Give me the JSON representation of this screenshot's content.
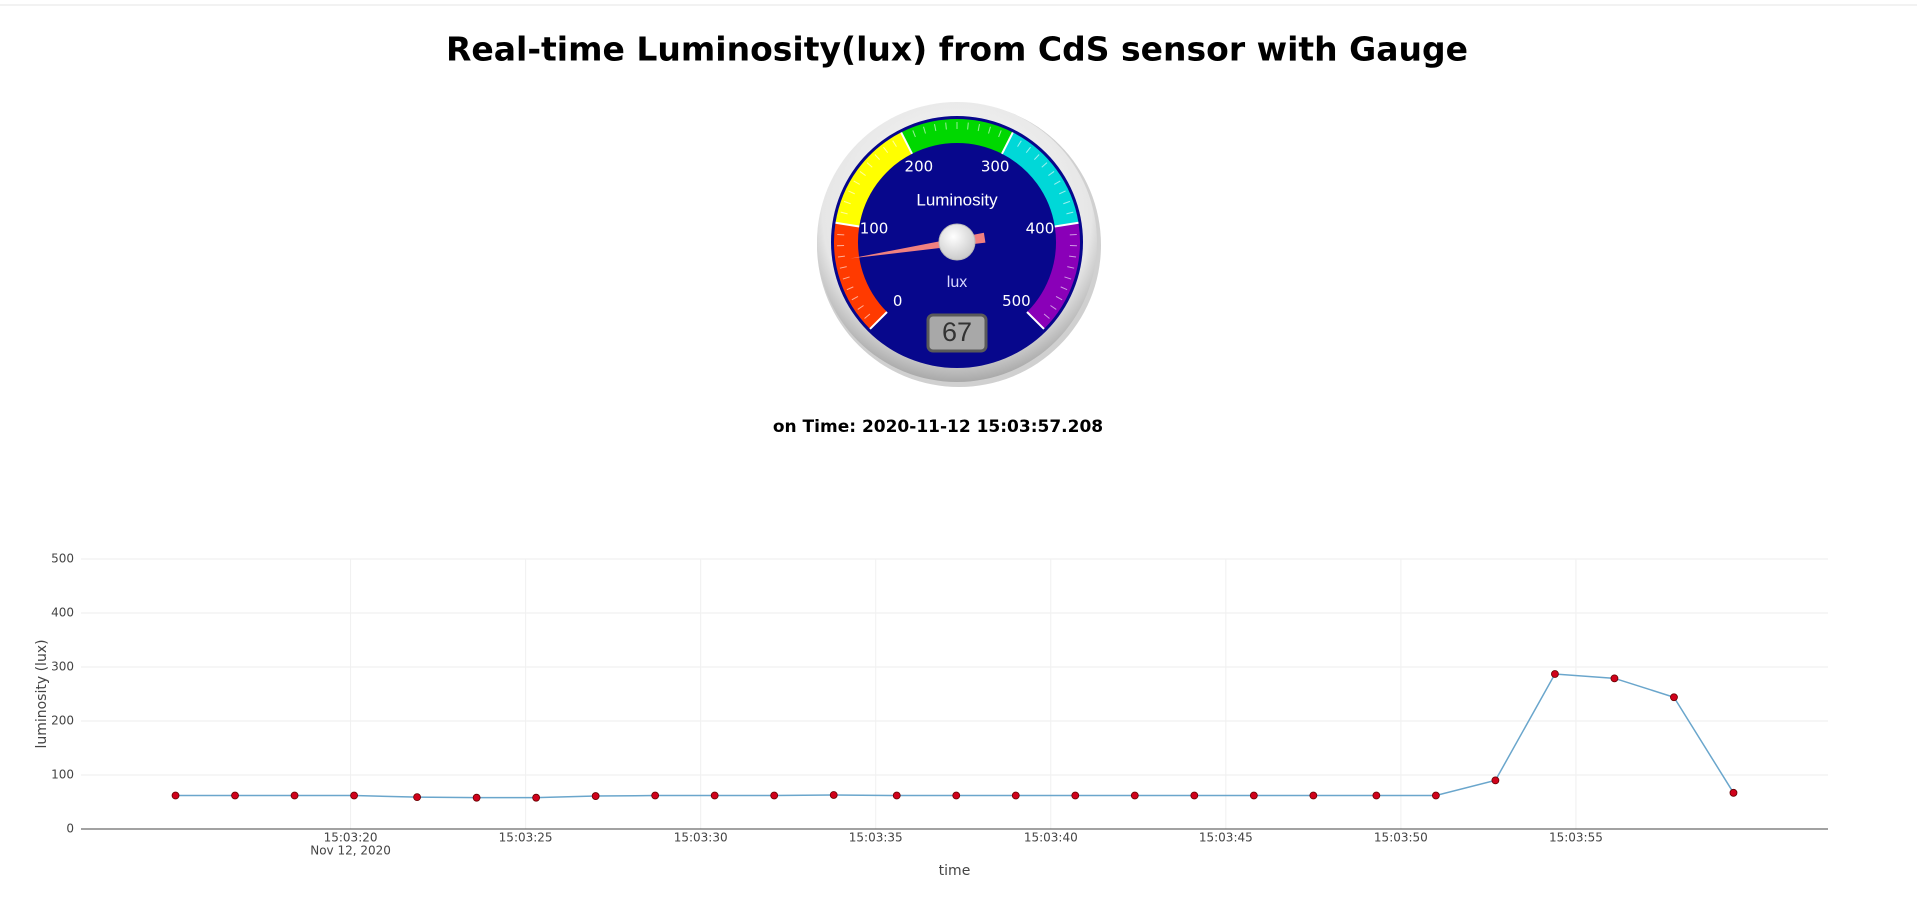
{
  "title": "Real-time Luminosity(lux) from CdS sensor with Gauge",
  "time_label": "on Time: 2020-11-12 15:03:57.208",
  "chart_data": [
    {
      "type": "gauge",
      "title": "Luminosity",
      "units": "lux",
      "value": 67,
      "range": [
        0,
        500
      ],
      "ticks": [
        0,
        100,
        200,
        300,
        400,
        500
      ],
      "bands": [
        {
          "from": 0,
          "to": 100,
          "color": "#ff3a00"
        },
        {
          "from": 100,
          "to": 200,
          "color": "#ffff00"
        },
        {
          "from": 200,
          "to": 300,
          "color": "#00d800"
        },
        {
          "from": 300,
          "to": 400,
          "color": "#00d8d8"
        },
        {
          "from": 400,
          "to": 500,
          "color": "#8a00b8"
        }
      ]
    },
    {
      "type": "line",
      "x_label": "time",
      "y_label": "luminosity (lux)",
      "x": [
        "15:03:15.0",
        "15:03:16.7",
        "15:03:18.4",
        "15:03:20.1",
        "15:03:21.9",
        "15:03:23.6",
        "15:03:25.3",
        "15:03:27.0",
        "15:03:28.7",
        "15:03:30.4",
        "15:03:32.1",
        "15:03:33.8",
        "15:03:35.6",
        "15:03:37.3",
        "15:03:39.0",
        "15:03:40.7",
        "15:03:42.4",
        "15:03:44.1",
        "15:03:45.8",
        "15:03:47.5",
        "15:03:49.3",
        "15:03:51.0",
        "15:03:52.7",
        "15:03:54.4",
        "15:03:56.1",
        "15:03:57.8",
        "15:03:59.5"
      ],
      "values": [
        62,
        62,
        62,
        62,
        59,
        58,
        58,
        61,
        62,
        62,
        62,
        63,
        62,
        62,
        62,
        62,
        62,
        62,
        62,
        62,
        62,
        62,
        90,
        287,
        279,
        244,
        67
      ],
      "color": "#6aa6cc",
      "marker_color": "#d0021b",
      "xlim": [
        "15:03:12.3",
        "15:04:02.2"
      ],
      "xticks": [
        "15:03:20",
        "15:03:25",
        "15:03:30",
        "15:03:35",
        "15:03:40",
        "15:03:45",
        "15:03:50",
        "15:03:55"
      ],
      "xtick_date": "Nov 12, 2020",
      "ylim": [
        0,
        500
      ],
      "yticks": [
        0,
        100,
        200,
        300,
        400,
        500
      ],
      "grid": true
    }
  ]
}
